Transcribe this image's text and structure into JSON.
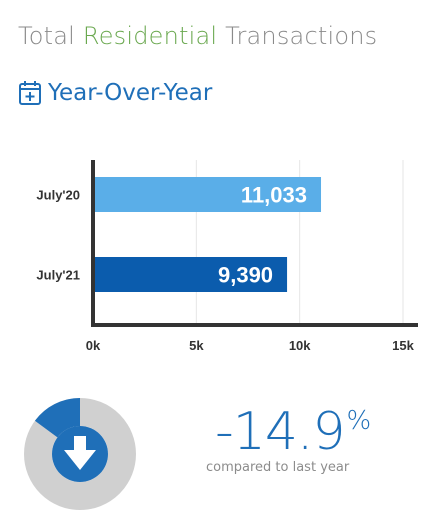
{
  "header": {
    "title_part1": "Total ",
    "title_part2": "Residential",
    "title_part3": " Transactions",
    "subtitle": "Year-Over-Year"
  },
  "colors": {
    "accent_blue": "#1f6fb8",
    "title_gray": "#8a8a8a",
    "title_green": "#6aa84f",
    "bar_light": "#5aaee8",
    "bar_dark": "#0b5cad",
    "donut_gray": "#d0d0d0"
  },
  "chart_data": {
    "type": "bar",
    "orientation": "horizontal",
    "categories": [
      "July'20",
      "July'21"
    ],
    "values": [
      11033,
      9390
    ],
    "value_labels": [
      "11,033",
      "9,390"
    ],
    "xlim": [
      0,
      15000
    ],
    "x_ticks": [
      "0k",
      "5k",
      "10k",
      "15k"
    ],
    "x_tick_values": [
      0,
      5000,
      10000,
      15000
    ],
    "grid": true
  },
  "summary": {
    "change_value": "-14.9",
    "change_unit": "%",
    "change_fraction": 0.149,
    "caption": "compared to last year",
    "icon": "down-arrow-icon"
  }
}
